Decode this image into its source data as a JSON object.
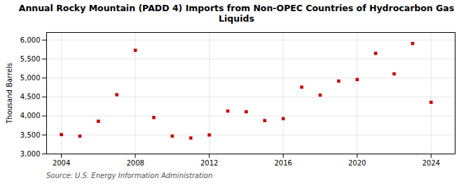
{
  "chart_data": {
    "type": "scatter",
    "title": "Annual Rocky Mountain (PADD 4) Imports from Non-OPEC Countries of Hydrocarbon Gas\nLiquids",
    "ylabel": "Thousand Barrels",
    "source": "Source: U.S. Energy Information Administration",
    "x": [
      2004,
      2005,
      2006,
      2007,
      2008,
      2009,
      2010,
      2011,
      2012,
      2013,
      2014,
      2015,
      2016,
      2017,
      2018,
      2019,
      2020,
      2021,
      2022,
      2023,
      2024
    ],
    "values": [
      3510,
      3470,
      3860,
      4560,
      5730,
      3960,
      3470,
      3420,
      3500,
      4130,
      4110,
      3880,
      3930,
      4760,
      4550,
      4920,
      4960,
      5650,
      5110,
      5910,
      4360
    ],
    "color": "#cc0000",
    "marker": "square",
    "xlim": [
      2003.2,
      2025.3
    ],
    "xticks": [
      2004,
      2008,
      2012,
      2016,
      2020,
      2024
    ],
    "ylim": [
      3000,
      6200
    ],
    "yticks": [
      {
        "value": 3000,
        "label": "3,000"
      },
      {
        "value": 3500,
        "label": "3,500"
      },
      {
        "value": 4000,
        "label": "4,000"
      },
      {
        "value": 4500,
        "label": "4,500"
      },
      {
        "value": 5000,
        "label": "5,000"
      },
      {
        "value": 5500,
        "label": "5,500"
      },
      {
        "value": 6000,
        "label": "6,000"
      }
    ],
    "grid": true
  }
}
